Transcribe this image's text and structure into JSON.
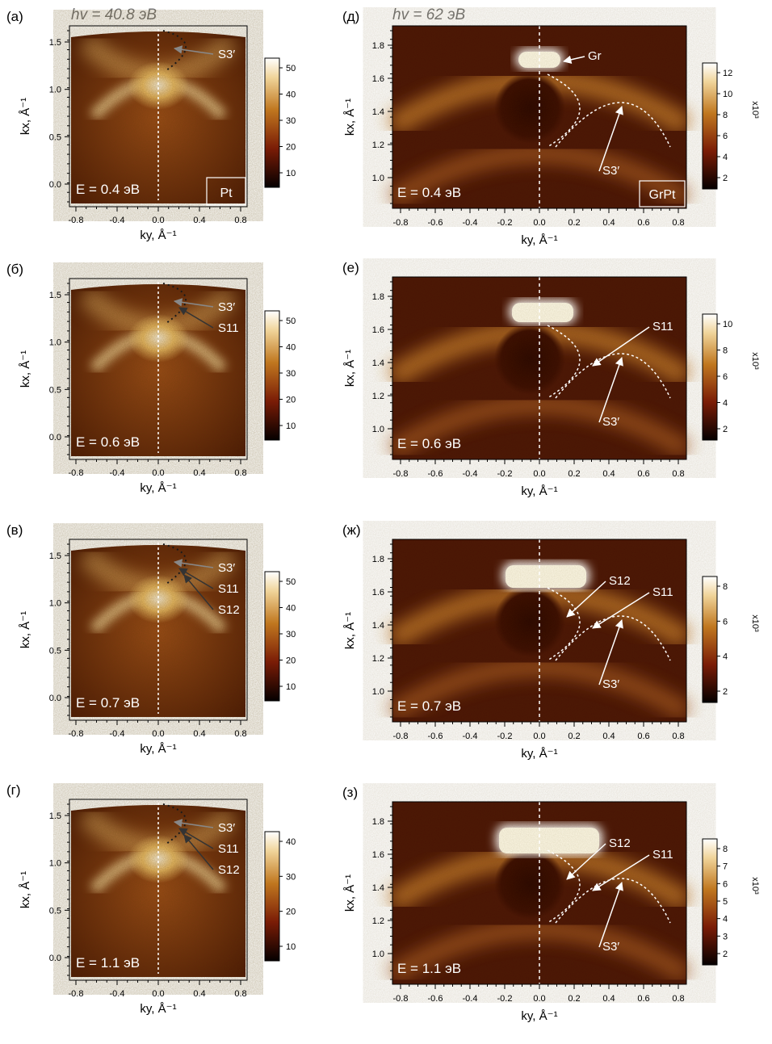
{
  "header": {
    "left_energy": "hv = 40.8 эВ",
    "right_energy": "hv = 62 эВ"
  },
  "axes": {
    "ky_label": "ky, Å⁻¹",
    "kx_label": "kx, Å⁻¹",
    "left_x_ticks": [
      "-0.8",
      "-0.4",
      "0.0",
      "0.4",
      "0.8"
    ],
    "left_y_ticks": [
      "0.0",
      "0.5",
      "1.0",
      "1.5"
    ],
    "right_x_ticks": [
      "-0.8",
      "-0.6",
      "-0.4",
      "-0.2",
      "0.0",
      "0.2",
      "0.4",
      "0.6",
      "0.8"
    ],
    "right_y_ticks": [
      "1.0",
      "1.2",
      "1.4",
      "1.6",
      "1.8"
    ],
    "colorbar_unit": "x10³"
  },
  "panels_left": [
    {
      "letter": "(а)",
      "energy": "E = 0.4 эВ",
      "sample": "Pt",
      "colorbar": [
        "50",
        "40",
        "30",
        "20",
        "10"
      ],
      "labels": [
        "S3′"
      ]
    },
    {
      "letter": "(б)",
      "energy": "E = 0.6 эВ",
      "sample": "",
      "colorbar": [
        "50",
        "40",
        "30",
        "20",
        "10"
      ],
      "labels": [
        "S3′",
        "S11"
      ]
    },
    {
      "letter": "(в)",
      "energy": "E = 0.7 эВ",
      "sample": "",
      "colorbar": [
        "50",
        "40",
        "30",
        "20",
        "10"
      ],
      "labels": [
        "S3′",
        "S11",
        "S12"
      ]
    },
    {
      "letter": "(г)",
      "energy": "E = 1.1 эВ",
      "sample": "",
      "colorbar": [
        "40",
        "30",
        "20",
        "10"
      ],
      "labels": [
        "S3′",
        "S11",
        "S12"
      ]
    }
  ],
  "panels_right": [
    {
      "letter": "(д)",
      "energy": "E = 0.4 эВ",
      "sample": "GrPt",
      "colorbar": [
        "12",
        "10",
        "8",
        "6",
        "4",
        "2"
      ],
      "labels": [
        "Gr",
        "S3′"
      ]
    },
    {
      "letter": "(е)",
      "energy": "E = 0.6 эВ",
      "sample": "",
      "colorbar": [
        "10",
        "8",
        "6",
        "4",
        "2"
      ],
      "labels": [
        "S11",
        "S3′"
      ]
    },
    {
      "letter": "(ж)",
      "energy": "E = 0.7 эВ",
      "sample": "",
      "colorbar": [
        "8",
        "6",
        "4",
        "2"
      ],
      "labels": [
        "S12",
        "S11",
        "S3′"
      ]
    },
    {
      "letter": "(з)",
      "energy": "E = 1.1 эВ",
      "sample": "",
      "colorbar": [
        "8",
        "7",
        "6",
        "5",
        "4",
        "3",
        "2"
      ],
      "labels": [
        "S12",
        "S11",
        "S3′"
      ]
    }
  ],
  "colors": {
    "map_dark": "#1a0500",
    "map_mid": "#8a3a10",
    "map_bright": "#e0b060",
    "map_white": "#fff6e0",
    "annotation_white": "#ffffff",
    "annotation_dark": "#1a1a1a"
  }
}
